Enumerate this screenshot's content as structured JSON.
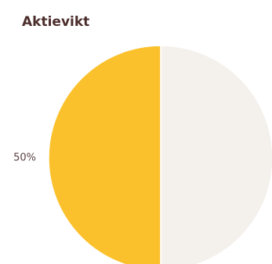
{
  "chart_data": {
    "type": "pie",
    "title": "Aktievikt",
    "values": [
      50,
      50
    ],
    "value_labels": [
      null,
      "50%"
    ],
    "colors": [
      "#f4f0ec",
      "#fbc12d"
    ]
  }
}
